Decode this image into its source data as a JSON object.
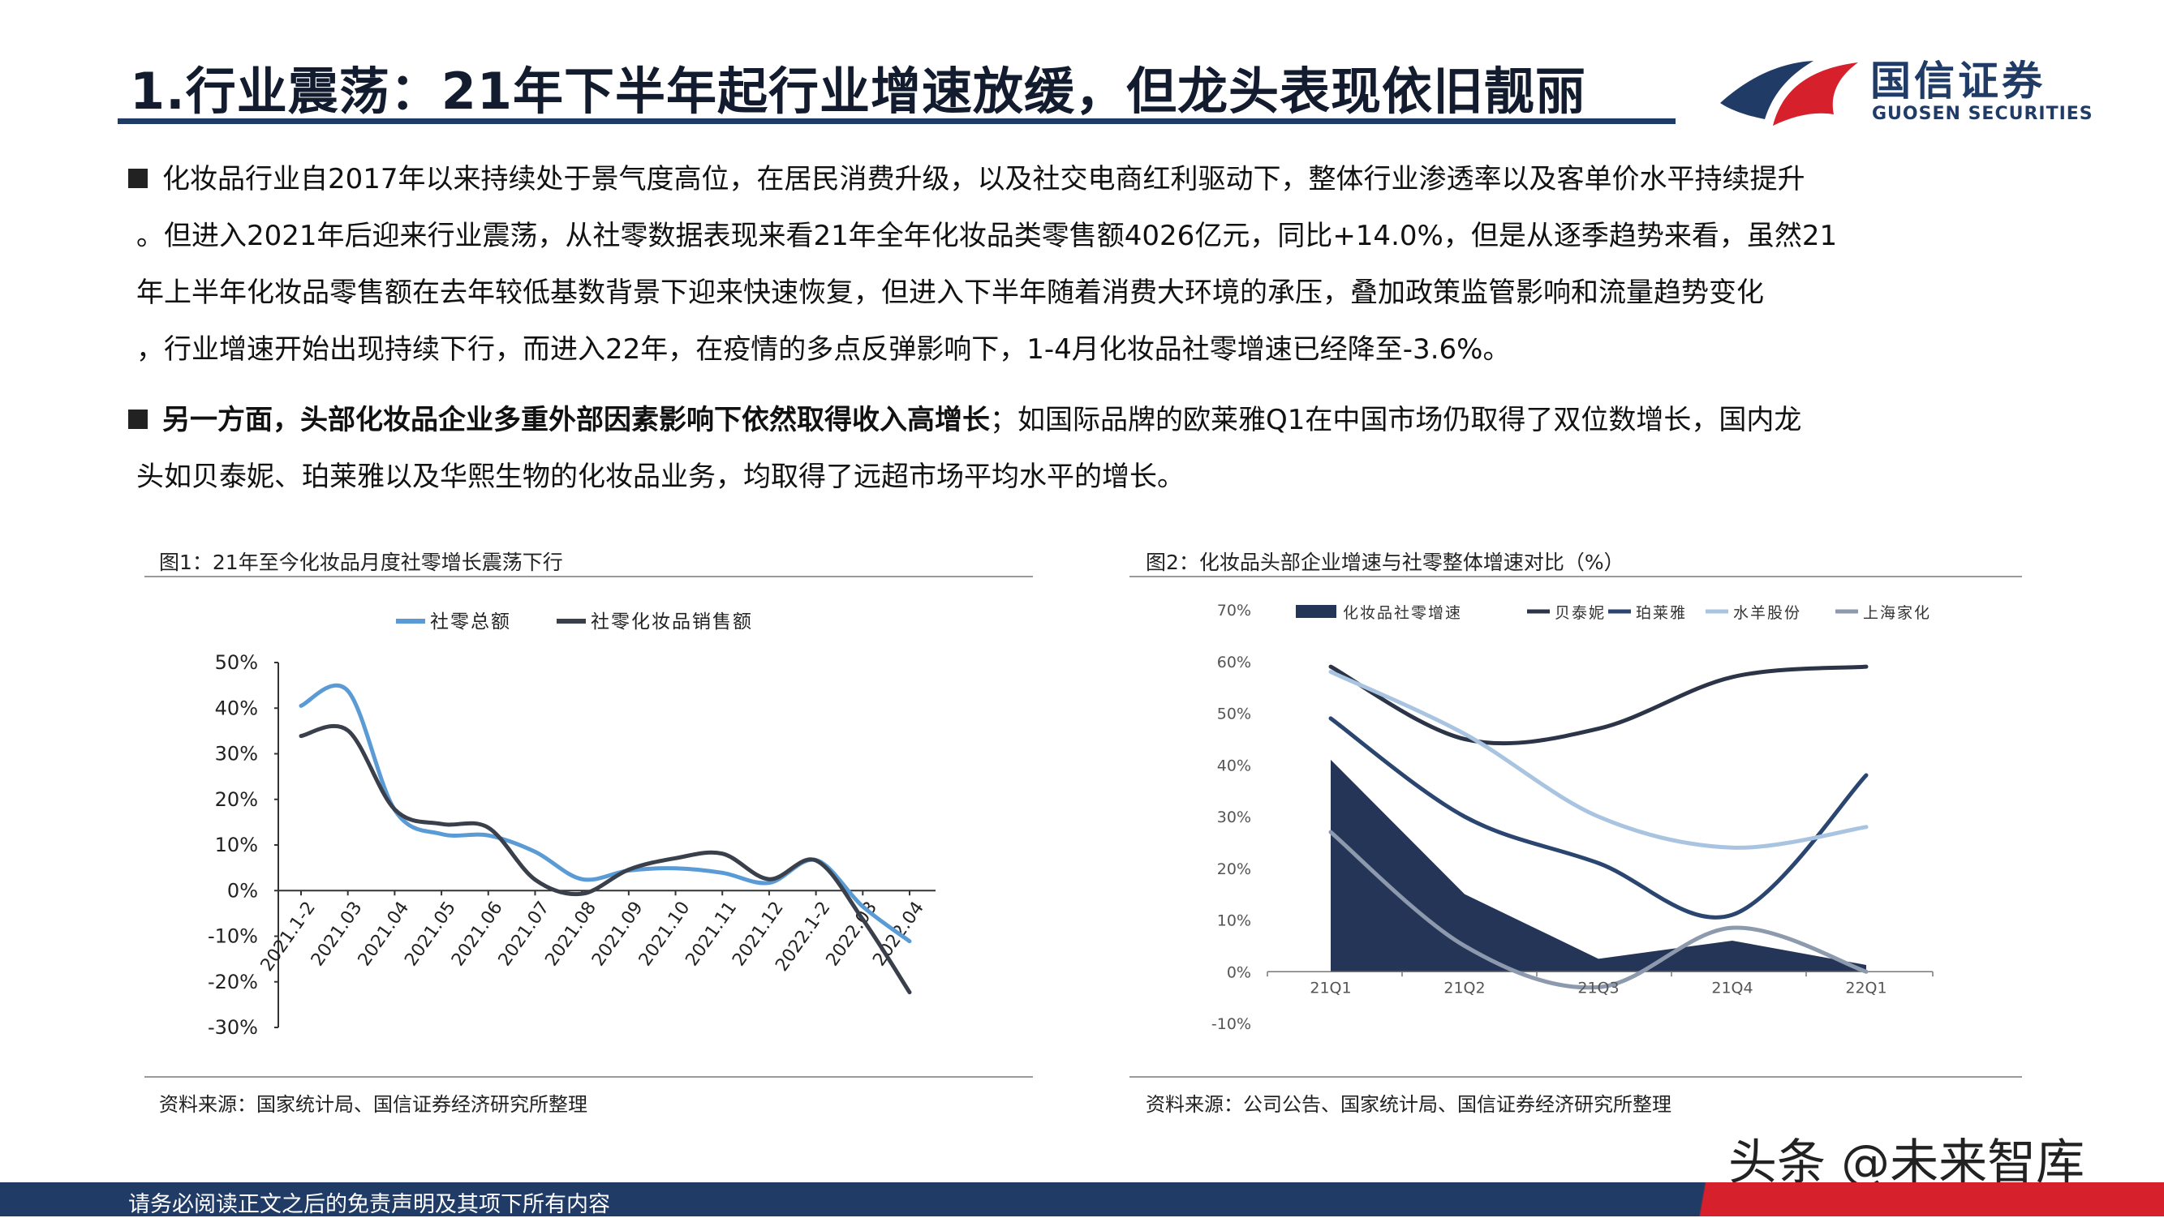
{
  "header": {
    "title": "1.行业震荡：21年下半年起行业增速放缓，但龙头表现依旧靓丽",
    "logo_cn": "国信证券",
    "logo_en": "GUOSEN SECURITIES",
    "logo_colors": {
      "navy": "#1f3b66",
      "red": "#d6202b"
    }
  },
  "paragraphs": [
    {
      "bold": "",
      "lines": [
        "化妆品行业自2017年以来持续处于景气度高位，在居民消费升级，以及社交电商红利驱动下，整体行业渗透率以及客单价水平持续提升",
        "。但进入2021年后迎来行业震荡，从社零数据表现来看21年全年化妆品类零售额4026亿元，同比+14.0%，但是从逐季趋势来看，虽然21",
        "年上半年化妆品零售额在去年较低基数背景下迎来快速恢复，但进入下半年随着消费大环境的承压，叠加政策监管影响和流量趋势变化",
        "，行业增速开始出现持续下行，而进入22年，在疫情的多点反弹影响下，1-4月化妆品社零增速已经降至-3.6%。"
      ]
    },
    {
      "bold": "另一方面，头部化妆品企业多重外部因素影响下依然取得收入高增长",
      "lines": [
        "；如国际品牌的欧莱雅Q1在中国市场仍取得了双位数增长，国内龙",
        "头如贝泰妮、珀莱雅以及华熙生物的化妆品业务，均取得了远超市场平均水平的增长。"
      ]
    }
  ],
  "figure1": {
    "title": "图1：21年至今化妆品月度社零增长震荡下行",
    "source": "资料来源：国家统计局、国信证券经济研究所整理"
  },
  "figure2": {
    "title": "图2：化妆品头部企业增速与社零整体增速对比（%）",
    "source": "资料来源：公司公告、国家统计局、国信证券经济研究所整理"
  },
  "chart_data": [
    {
      "type": "line",
      "title": "图1：21年至今化妆品月度社零增长震荡下行",
      "categories": [
        "2021.1-2",
        "2021.03",
        "2021.04",
        "2021.05",
        "2021.06",
        "2021.07",
        "2021.08",
        "2021.09",
        "2021.10",
        "2021.11",
        "2021.12",
        "2022.1-2",
        "2022.03",
        "2022.04"
      ],
      "series": [
        {
          "name": "社零总额",
          "color": "#5b9bd5",
          "values": [
            40.5,
            43.8,
            17.7,
            12.4,
            12.1,
            8.5,
            2.5,
            4.4,
            4.9,
            3.9,
            1.7,
            6.7,
            -3.5,
            -11.1
          ]
        },
        {
          "name": "社零化妆品销售额",
          "color": "#3a3f4c",
          "values": [
            33.9,
            35.1,
            17.8,
            14.6,
            13.8,
            2.4,
            -0.7,
            4.6,
            7.1,
            8.1,
            2.5,
            6.6,
            -6.3,
            -22.3
          ]
        }
      ],
      "ylim": [
        -30,
        50
      ],
      "yticks": [
        "50%",
        "40%",
        "30%",
        "20%",
        "10%",
        "0%",
        "-10%",
        "-20%",
        "-30%"
      ],
      "legend": "top"
    },
    {
      "type": "line",
      "title": "图2：化妆品头部企业增速与社零整体增速对比（%）",
      "categories": [
        "21Q1",
        "21Q2",
        "21Q3",
        "21Q4",
        "22Q1"
      ],
      "area_series": {
        "name": "化妆品社零增速",
        "color": "#253557",
        "values": [
          41,
          15,
          2.5,
          6,
          1.3
        ]
      },
      "series": [
        {
          "name": "贝泰妮",
          "color": "#2c3447",
          "values": [
            59,
            45,
            47,
            57,
            59
          ]
        },
        {
          "name": "珀莱雅",
          "color": "#2a4670",
          "values": [
            49,
            30,
            21,
            11,
            38
          ]
        },
        {
          "name": "水羊股份",
          "color": "#a9c4e0",
          "values": [
            58,
            46,
            30,
            24,
            28
          ]
        },
        {
          "name": "上海家化",
          "color": "#8d9aad",
          "values": [
            27,
            5,
            -3,
            8.5,
            0
          ]
        }
      ],
      "ylim": [
        -10,
        70
      ],
      "yticks": [
        "70%",
        "60%",
        "50%",
        "40%",
        "30%",
        "20%",
        "10%",
        "0%",
        "-10%"
      ],
      "legend": "top"
    }
  ],
  "watermark": "头条 @未来智库",
  "footer": "请务必阅读正文之后的免责声明及其项下所有内容"
}
